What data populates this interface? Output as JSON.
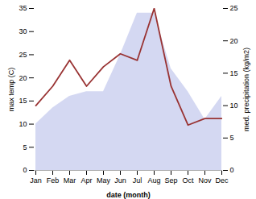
{
  "chart_data": {
    "type": "line",
    "categories": [
      "Jan",
      "Feb",
      "Mar",
      "Apr",
      "May",
      "Jun",
      "Jul",
      "Aug",
      "Sep",
      "Oct",
      "Nov",
      "Dec"
    ],
    "xlabel": "date (month)",
    "ylabel": "max temp (C)",
    "y2label": "med. precipitation (kg/m2)",
    "ylim": [
      0,
      35
    ],
    "yticks": [
      0,
      5,
      10,
      15,
      20,
      25,
      30,
      35
    ],
    "y2lim": [
      0,
      25
    ],
    "y2ticks": [
      0,
      5,
      10,
      15,
      20,
      25
    ],
    "grid": false,
    "series": [
      {
        "type": "area",
        "color": "#b0b8e8",
        "values": [
          10,
          13.5,
          16,
          17,
          17,
          25,
          34,
          34,
          22,
          17,
          11,
          16
        ]
      },
      {
        "type": "line",
        "axis": "y2",
        "color": "#993333",
        "values": [
          10,
          13,
          17,
          13,
          16,
          18,
          17,
          25,
          13,
          7,
          8,
          8
        ]
      }
    ]
  }
}
